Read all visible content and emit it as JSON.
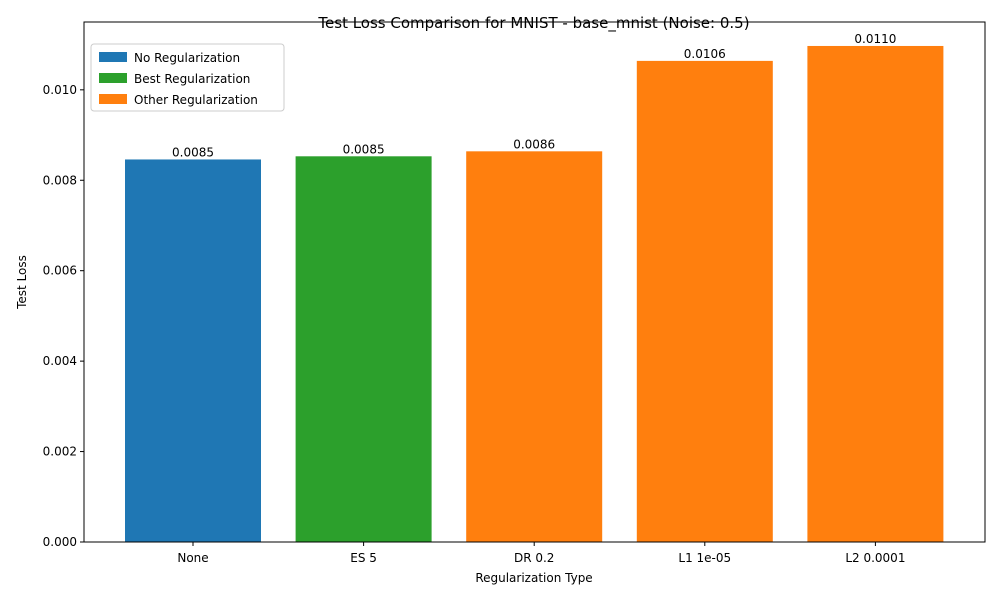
{
  "chart_data": {
    "type": "bar",
    "title": "Test Loss Comparison for MNIST - base_mnist (Noise: 0.5)",
    "xlabel": "Regularization Type",
    "ylabel": "Test Loss",
    "categories": [
      "None",
      "ES 5",
      "DR 0.2",
      "L1 1e-05",
      "L2 0.0001"
    ],
    "values": [
      0.00846,
      0.00853,
      0.00864,
      0.01064,
      0.01097
    ],
    "value_labels": [
      "0.0085",
      "0.0085",
      "0.0086",
      "0.0106",
      "0.0110"
    ],
    "bar_groups": [
      "none",
      "best",
      "other",
      "other",
      "other"
    ],
    "ylim": [
      0,
      0.0115
    ],
    "yticks": [
      0.0,
      0.002,
      0.004,
      0.006,
      0.008,
      0.01
    ],
    "ytick_labels": [
      "0.000",
      "0.002",
      "0.004",
      "0.006",
      "0.008",
      "0.010"
    ],
    "grid": false,
    "legend_position": "top-left",
    "legend": [
      {
        "group": "none",
        "label": "No Regularization",
        "color": "#1f77b4"
      },
      {
        "group": "best",
        "label": "Best Regularization",
        "color": "#2ca02c"
      },
      {
        "group": "other",
        "label": "Other Regularization",
        "color": "#ff7f0e"
      }
    ]
  }
}
